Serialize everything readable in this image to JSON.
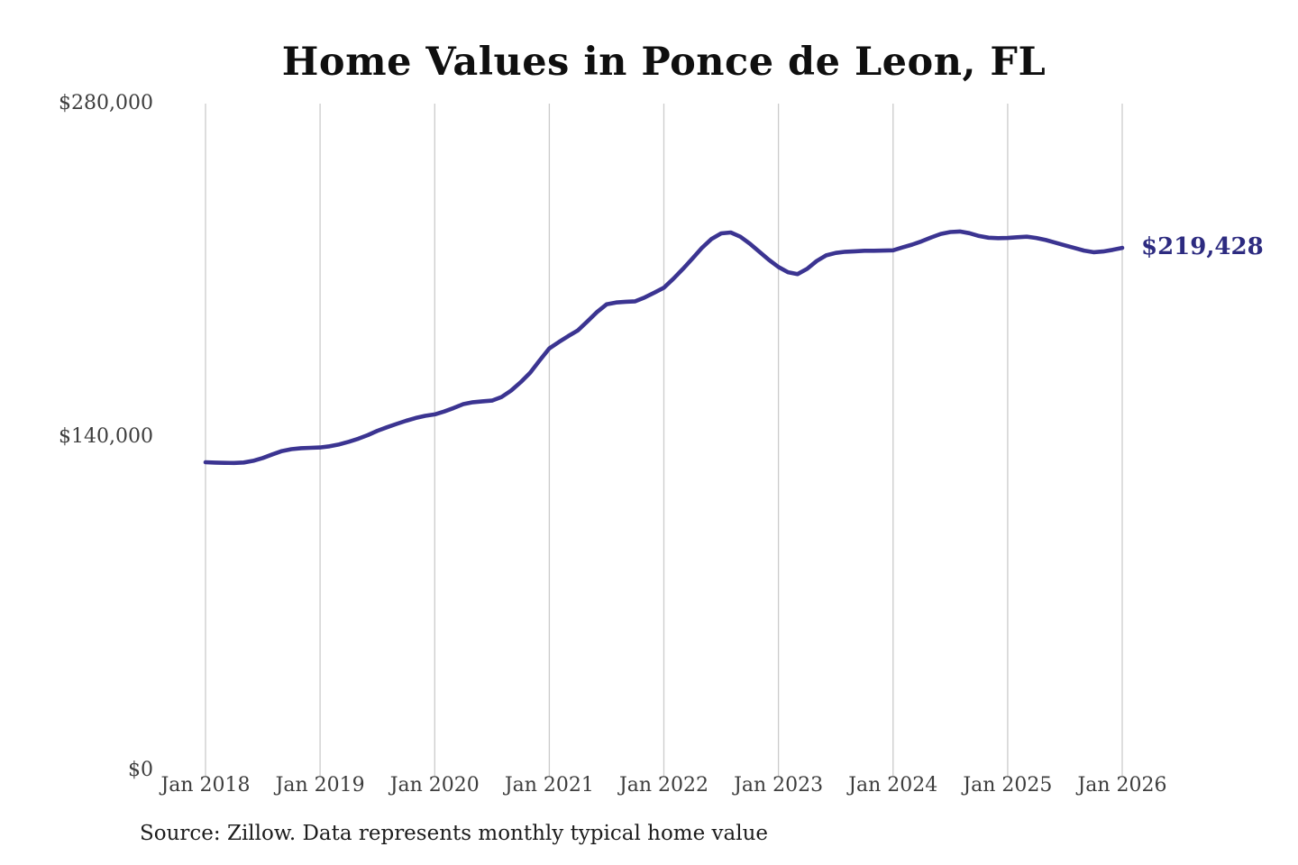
{
  "page": {
    "background": "#ffffff"
  },
  "chart_data": {
    "type": "line",
    "title": "Home Values in Ponce de Leon, FL",
    "source_note": "Source: Zillow. Data represents monthly typical home value",
    "end_label": "$219,428",
    "end_value": 219428,
    "xlabel": "",
    "ylabel": "",
    "x_tick_labels": [
      "Jan 2018",
      "Jan 2019",
      "Jan 2020",
      "Jan 2021",
      "Jan 2022",
      "Jan 2023",
      "Jan 2024",
      "Jan 2025",
      "Jan 2026"
    ],
    "y_tick_labels": [
      "$0",
      "$140,000",
      "$280,000"
    ],
    "y_tick_values": [
      0,
      140000,
      280000
    ],
    "ylim": [
      0,
      280000
    ],
    "x_range": {
      "start_label": "Jan 2018",
      "end_label": "Jan 2026",
      "interval": "monthly"
    },
    "grid": "vertical-yearly-only",
    "legend": "none",
    "colors": {
      "line": "#3b3491",
      "end_label_text": "#2d2b80",
      "axis_text": "#3d3d3d",
      "gridline": "#cbcbcb",
      "title_text": "#0f0f0f",
      "source_text": "#1c1c1c"
    },
    "series": [
      {
        "name": "Monthly typical home value",
        "color": "#3b3491",
        "start": "2018-01",
        "values": [
          129400,
          129250,
          129150,
          129100,
          129300,
          130000,
          131200,
          132700,
          134100,
          134900,
          135300,
          135450,
          135600,
          136100,
          136900,
          138000,
          139300,
          140800,
          142600,
          144100,
          145500,
          146800,
          148000,
          148900,
          149500,
          150700,
          152200,
          153800,
          154600,
          155000,
          155300,
          156800,
          159500,
          163000,
          167000,
          172200,
          177200,
          179900,
          182400,
          184800,
          188600,
          192500,
          195700,
          196500,
          196800,
          197000,
          198600,
          200600,
          202700,
          206500,
          210600,
          215000,
          219500,
          223200,
          225500,
          225900,
          224100,
          221200,
          217800,
          214400,
          211400,
          209200,
          208400,
          210600,
          213900,
          216300,
          217300,
          217800,
          218000,
          218200,
          218200,
          218300,
          218400,
          219600,
          220800,
          222200,
          223800,
          225300,
          226100,
          226300,
          225600,
          224400,
          223700,
          223500,
          223600,
          223900,
          224100,
          223600,
          222700,
          221600,
          220500,
          219400,
          218300,
          217600,
          217900,
          218600,
          219428
        ]
      }
    ]
  }
}
